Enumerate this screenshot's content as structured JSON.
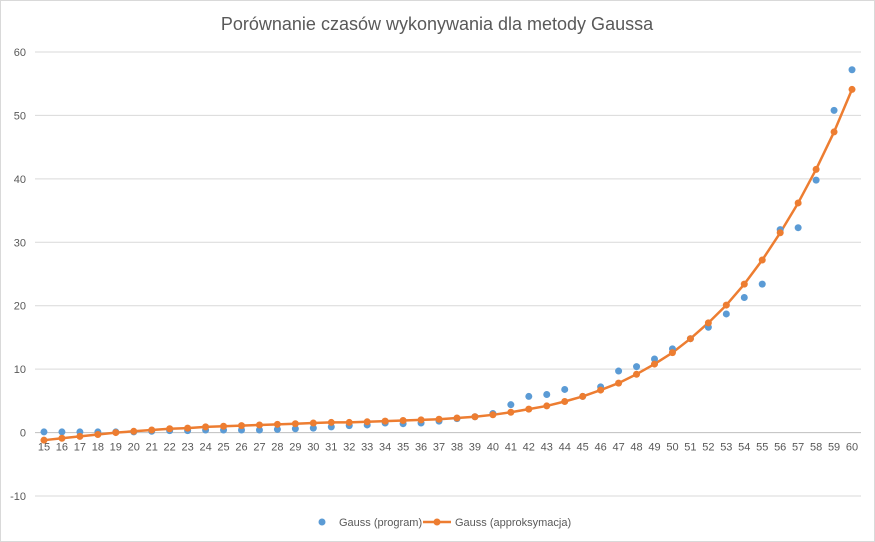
{
  "chart_data": {
    "type": "scatter",
    "title": "Porównanie czasów wykonywania dla metody Gaussa",
    "xlabel": "",
    "ylabel": "",
    "categories": [
      "15",
      "16",
      "17",
      "18",
      "19",
      "20",
      "21",
      "22",
      "23",
      "24",
      "25",
      "26",
      "27",
      "28",
      "29",
      "30",
      "31",
      "32",
      "33",
      "34",
      "35",
      "36",
      "37",
      "38",
      "39",
      "40",
      "41",
      "42",
      "43",
      "44",
      "45",
      "46",
      "47",
      "48",
      "49",
      "50",
      "51",
      "52",
      "53",
      "54",
      "55",
      "56",
      "57",
      "58",
      "59",
      "60"
    ],
    "y_ticks": [
      "-10",
      "0",
      "10",
      "20",
      "30",
      "40",
      "50",
      "60"
    ],
    "ylim": [
      -10,
      60
    ],
    "grid": true,
    "legend_position": "bottom",
    "series": [
      {
        "name": "Gauss (program)",
        "style": "markers",
        "color": "#5b9bd5",
        "values": [
          0.1,
          0.1,
          0.1,
          0.1,
          0.1,
          0.1,
          0.2,
          0.3,
          0.3,
          0.4,
          0.4,
          0.4,
          0.4,
          0.5,
          0.6,
          0.7,
          0.9,
          1.1,
          1.2,
          1.5,
          1.4,
          1.5,
          1.8,
          2.2,
          2.5,
          3.0,
          4.4,
          5.7,
          6.0,
          6.8,
          5.7,
          7.2,
          9.7,
          10.4,
          11.6,
          13.2,
          14.8,
          16.6,
          18.7,
          21.3,
          23.4,
          32.0,
          32.3,
          39.8,
          50.8,
          57.2
        ]
      },
      {
        "name": "Gauss (approksymacja)",
        "style": "line-markers",
        "color": "#ed7d31",
        "values": [
          -1.2,
          -0.9,
          -0.6,
          -0.3,
          0.0,
          0.2,
          0.4,
          0.6,
          0.7,
          0.9,
          1.0,
          1.1,
          1.2,
          1.3,
          1.4,
          1.5,
          1.6,
          1.6,
          1.7,
          1.8,
          1.9,
          2.0,
          2.1,
          2.3,
          2.5,
          2.8,
          3.2,
          3.7,
          4.2,
          4.9,
          5.7,
          6.7,
          7.8,
          9.2,
          10.8,
          12.6,
          14.8,
          17.3,
          20.1,
          23.4,
          27.2,
          31.5,
          36.2,
          41.5,
          47.4,
          54.1
        ]
      }
    ]
  }
}
